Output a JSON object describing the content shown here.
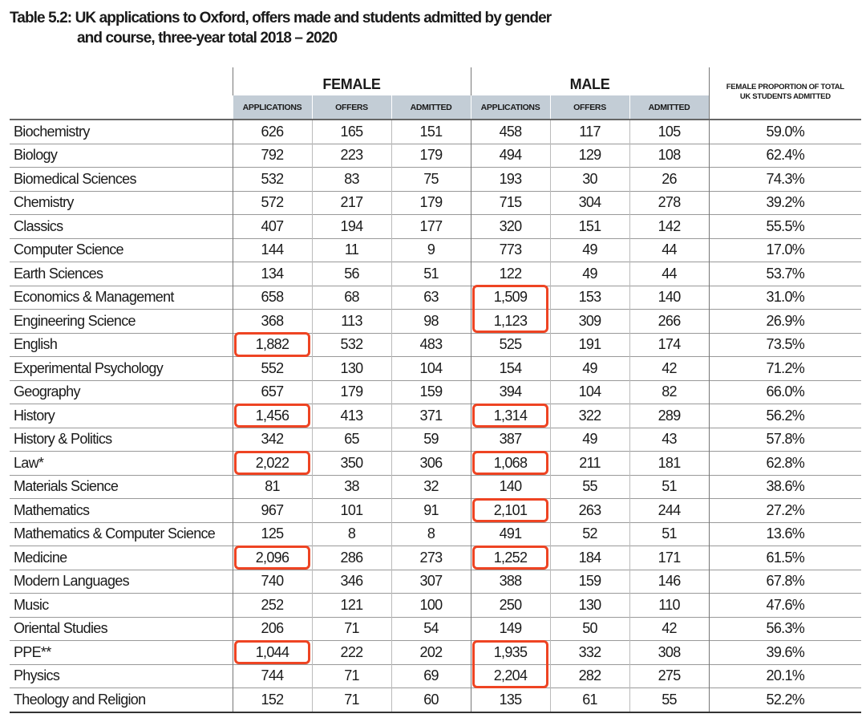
{
  "title": {
    "line1": "Table 5.2: UK applications to Oxford, offers made and students admitted by gender",
    "line2": "and course, three-year total 2018 – 2020"
  },
  "header": {
    "female": "FEMALE",
    "male": "MALE",
    "applications": "APPLICATIONS",
    "offers": "OFFERS",
    "admitted": "ADMITTED",
    "proportion_line1": "FEMALE PROPORTION OF TOTAL",
    "proportion_line2": "UK STUDENTS ADMITTED"
  },
  "rows": [
    {
      "course": "Biochemistry",
      "f_app": "626",
      "f_off": "165",
      "f_adm": "151",
      "m_app": "458",
      "m_off": "117",
      "m_adm": "105",
      "prop": "59.0%"
    },
    {
      "course": "Biology",
      "f_app": "792",
      "f_off": "223",
      "f_adm": "179",
      "m_app": "494",
      "m_off": "129",
      "m_adm": "108",
      "prop": "62.4%"
    },
    {
      "course": "Biomedical Sciences",
      "f_app": "532",
      "f_off": "83",
      "f_adm": "75",
      "m_app": "193",
      "m_off": "30",
      "m_adm": "26",
      "prop": "74.3%"
    },
    {
      "course": "Chemistry",
      "f_app": "572",
      "f_off": "217",
      "f_adm": "179",
      "m_app": "715",
      "m_off": "304",
      "m_adm": "278",
      "prop": "39.2%"
    },
    {
      "course": "Classics",
      "f_app": "407",
      "f_off": "194",
      "f_adm": "177",
      "m_app": "320",
      "m_off": "151",
      "m_adm": "142",
      "prop": "55.5%"
    },
    {
      "course": "Computer Science",
      "f_app": "144",
      "f_off": "11",
      "f_adm": "9",
      "m_app": "773",
      "m_off": "49",
      "m_adm": "44",
      "prop": "17.0%"
    },
    {
      "course": "Earth Sciences",
      "f_app": "134",
      "f_off": "56",
      "f_adm": "51",
      "m_app": "122",
      "m_off": "49",
      "m_adm": "44",
      "prop": "53.7%"
    },
    {
      "course": "Economics & Management",
      "f_app": "658",
      "f_off": "68",
      "f_adm": "63",
      "m_app": "1,509",
      "m_off": "153",
      "m_adm": "140",
      "prop": "31.0%"
    },
    {
      "course": "Engineering Science",
      "f_app": "368",
      "f_off": "113",
      "f_adm": "98",
      "m_app": "1,123",
      "m_off": "309",
      "m_adm": "266",
      "prop": "26.9%"
    },
    {
      "course": "English",
      "f_app": "1,882",
      "f_off": "532",
      "f_adm": "483",
      "m_app": "525",
      "m_off": "191",
      "m_adm": "174",
      "prop": "73.5%"
    },
    {
      "course": "Experimental Psychology",
      "f_app": "552",
      "f_off": "130",
      "f_adm": "104",
      "m_app": "154",
      "m_off": "49",
      "m_adm": "42",
      "prop": "71.2%"
    },
    {
      "course": "Geography",
      "f_app": "657",
      "f_off": "179",
      "f_adm": "159",
      "m_app": "394",
      "m_off": "104",
      "m_adm": "82",
      "prop": "66.0%"
    },
    {
      "course": "History",
      "f_app": "1,456",
      "f_off": "413",
      "f_adm": "371",
      "m_app": "1,314",
      "m_off": "322",
      "m_adm": "289",
      "prop": "56.2%"
    },
    {
      "course": "History & Politics",
      "f_app": "342",
      "f_off": "65",
      "f_adm": "59",
      "m_app": "387",
      "m_off": "49",
      "m_adm": "43",
      "prop": "57.8%"
    },
    {
      "course": "Law*",
      "f_app": "2,022",
      "f_off": "350",
      "f_adm": "306",
      "m_app": "1,068",
      "m_off": "211",
      "m_adm": "181",
      "prop": "62.8%"
    },
    {
      "course": "Materials Science",
      "f_app": "81",
      "f_off": "38",
      "f_adm": "32",
      "m_app": "140",
      "m_off": "55",
      "m_adm": "51",
      "prop": "38.6%"
    },
    {
      "course": "Mathematics",
      "f_app": "967",
      "f_off": "101",
      "f_adm": "91",
      "m_app": "2,101",
      "m_off": "263",
      "m_adm": "244",
      "prop": "27.2%"
    },
    {
      "course": "Mathematics & Computer Science",
      "f_app": "125",
      "f_off": "8",
      "f_adm": "8",
      "m_app": "491",
      "m_off": "52",
      "m_adm": "51",
      "prop": "13.6%"
    },
    {
      "course": "Medicine",
      "f_app": "2,096",
      "f_off": "286",
      "f_adm": "273",
      "m_app": "1,252",
      "m_off": "184",
      "m_adm": "171",
      "prop": "61.5%"
    },
    {
      "course": "Modern Languages",
      "f_app": "740",
      "f_off": "346",
      "f_adm": "307",
      "m_app": "388",
      "m_off": "159",
      "m_adm": "146",
      "prop": "67.8%"
    },
    {
      "course": "Music",
      "f_app": "252",
      "f_off": "121",
      "f_adm": "100",
      "m_app": "250",
      "m_off": "130",
      "m_adm": "110",
      "prop": "47.6%"
    },
    {
      "course": "Oriental Studies",
      "f_app": "206",
      "f_off": "71",
      "f_adm": "54",
      "m_app": "149",
      "m_off": "50",
      "m_adm": "42",
      "prop": "56.3%"
    },
    {
      "course": "PPE**",
      "f_app": "1,044",
      "f_off": "222",
      "f_adm": "202",
      "m_app": "1,935",
      "m_off": "332",
      "m_adm": "308",
      "prop": "39.6%"
    },
    {
      "course": "Physics",
      "f_app": "744",
      "f_off": "71",
      "f_adm": "69",
      "m_app": "2,204",
      "m_off": "282",
      "m_adm": "275",
      "prop": "20.1%"
    },
    {
      "course": "Theology and Religion",
      "f_app": "152",
      "f_off": "71",
      "f_adm": "60",
      "m_app": "135",
      "m_off": "61",
      "m_adm": "55",
      "prop": "52.2%"
    }
  ],
  "highlights": [
    {
      "column": "m_app",
      "rows": [
        "Economics & Management",
        "Engineering Science"
      ]
    },
    {
      "column": "f_app",
      "rows": [
        "English"
      ]
    },
    {
      "column": "f_app",
      "rows": [
        "History"
      ]
    },
    {
      "column": "m_app",
      "rows": [
        "History"
      ]
    },
    {
      "column": "f_app",
      "rows": [
        "Law*"
      ]
    },
    {
      "column": "m_app",
      "rows": [
        "Law*"
      ]
    },
    {
      "column": "m_app",
      "rows": [
        "Mathematics"
      ]
    },
    {
      "column": "f_app",
      "rows": [
        "Medicine"
      ]
    },
    {
      "column": "m_app",
      "rows": [
        "Medicine"
      ]
    },
    {
      "column": "f_app",
      "rows": [
        "PPE**"
      ]
    },
    {
      "column": "m_app",
      "rows": [
        "PPE**",
        "Physics"
      ]
    }
  ],
  "colors": {
    "highlight": "#ee4423",
    "subheader_bg": "#c3cdd6"
  }
}
